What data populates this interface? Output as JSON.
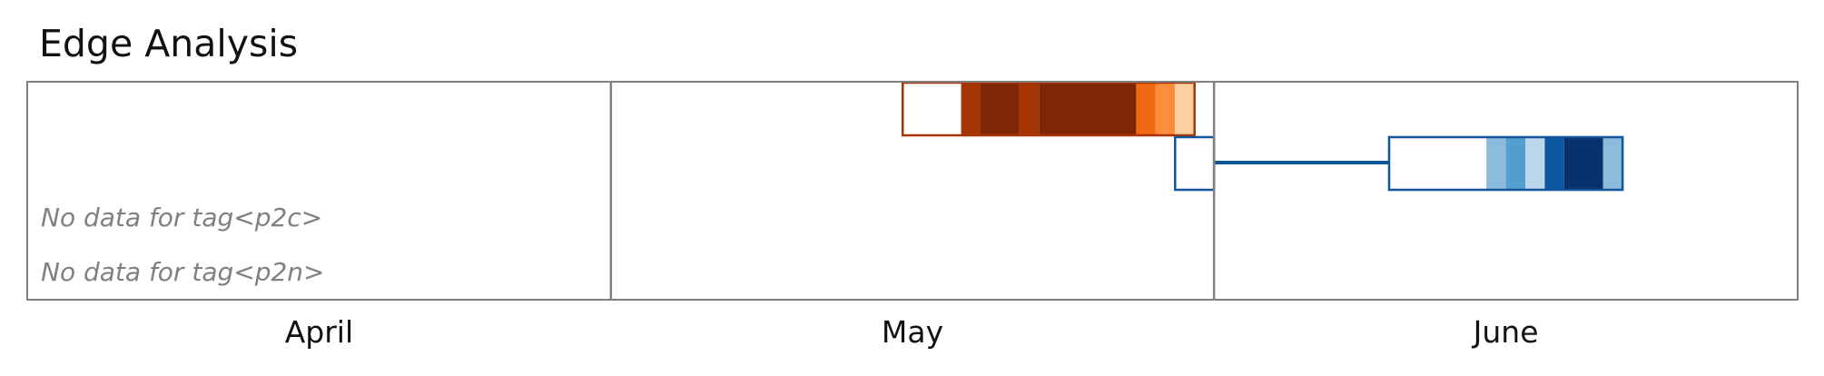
{
  "title": "Edge Analysis",
  "chart_data": {
    "type": "heatmap",
    "title": "Edge Analysis",
    "x_axis": {
      "unit": "day",
      "start": "04-01",
      "end": "06-30",
      "tick_labels": [
        "April",
        "May",
        "June"
      ],
      "month_boundaries": [
        "05-01",
        "06-01"
      ]
    },
    "rows": [
      {
        "label": "",
        "color_scale": "oranges",
        "outline_color": "#a83405",
        "cells": [
          {
            "start": "05-16",
            "end": "05-19",
            "color": "#ffffff"
          },
          {
            "start": "05-19",
            "end": "05-20",
            "color": "#a53603"
          },
          {
            "start": "05-20",
            "end": "05-22",
            "color": "#7f2704"
          },
          {
            "start": "05-22",
            "end": "05-23",
            "color": "#a53603"
          },
          {
            "start": "05-23",
            "end": "05-28",
            "color": "#7f2704"
          },
          {
            "start": "05-28",
            "end": "05-29",
            "color": "#f16913"
          },
          {
            "start": "05-29",
            "end": "05-30",
            "color": "#fd8d3c"
          },
          {
            "start": "05-30",
            "end": "05-31",
            "color": "#fdd0a2"
          }
        ]
      },
      {
        "label": "",
        "color_scale": "blues",
        "outline_color": "#0f559b",
        "cells": [
          {
            "start": "05-30",
            "end": "06-01",
            "color": "#ffffff"
          },
          {
            "start": "06-10",
            "end": "06-15",
            "color": "#ffffff"
          },
          {
            "start": "06-15",
            "end": "06-16",
            "color": "#8bbcdc"
          },
          {
            "start": "06-16",
            "end": "06-17",
            "color": "#539ecd"
          },
          {
            "start": "06-17",
            "end": "06-18",
            "color": "#bcd7eb"
          },
          {
            "start": "06-18",
            "end": "06-19",
            "color": "#0b58a1"
          },
          {
            "start": "06-19",
            "end": "06-21",
            "color": "#08306b"
          },
          {
            "start": "06-21",
            "end": "06-22",
            "color": "#8bbcdc"
          }
        ],
        "gap_connector": {
          "start": "06-01",
          "end": "06-10"
        }
      },
      {
        "label": "No data for tag<p2c>",
        "cells": []
      },
      {
        "label": "No data for tag<p2n>",
        "cells": []
      }
    ]
  }
}
